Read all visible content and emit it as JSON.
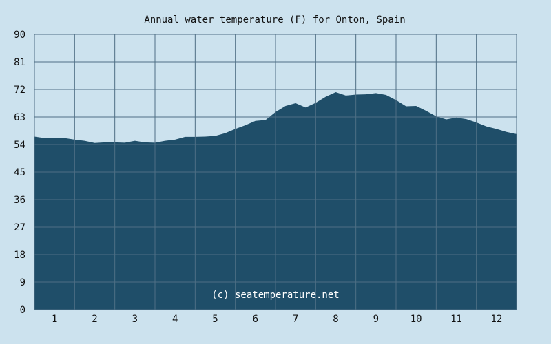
{
  "chart_data": {
    "type": "area",
    "title": "Annual water temperature (F) for Onton, Spain",
    "xlabel": "",
    "ylabel": "",
    "watermark": "(c) seatemperature.net",
    "x_tick_labels": [
      "1",
      "2",
      "3",
      "4",
      "5",
      "6",
      "7",
      "8",
      "9",
      "10",
      "11",
      "12"
    ],
    "y_tick_labels": [
      "0",
      "9",
      "18",
      "27",
      "36",
      "45",
      "54",
      "63",
      "72",
      "81",
      "90"
    ],
    "ylim": [
      0,
      90
    ],
    "xlim": [
      0,
      12
    ],
    "grid": true,
    "colors": {
      "background": "#cce2ee",
      "plot_background": "#cce2ee",
      "fill": "#1f4e69",
      "grid": "#4f6f85"
    },
    "x": [
      0.0,
      0.25,
      0.5,
      0.75,
      1.0,
      1.25,
      1.5,
      1.75,
      2.0,
      2.25,
      2.5,
      2.75,
      3.0,
      3.25,
      3.5,
      3.75,
      4.0,
      4.25,
      4.5,
      4.75,
      5.0,
      5.25,
      5.5,
      5.75,
      6.0,
      6.25,
      6.5,
      6.75,
      7.0,
      7.25,
      7.5,
      7.75,
      8.0,
      8.25,
      8.5,
      8.75,
      9.0,
      9.25,
      9.5,
      9.75,
      10.0,
      10.25,
      10.5,
      10.75,
      11.0,
      11.25,
      11.5,
      11.75,
      12.0
    ],
    "values": [
      56.6,
      56.1,
      56.1,
      56.1,
      55.6,
      55.2,
      54.5,
      54.7,
      54.7,
      54.6,
      55.2,
      54.7,
      54.6,
      55.2,
      55.6,
      56.5,
      56.5,
      56.6,
      56.8,
      57.7,
      59.1,
      60.3,
      61.7,
      62.0,
      64.6,
      66.6,
      67.5,
      66.1,
      67.6,
      69.6,
      71.1,
      70.0,
      70.3,
      70.4,
      70.8,
      70.2,
      68.5,
      66.5,
      66.6,
      65.0,
      63.2,
      62.2,
      62.8,
      62.3,
      61.2,
      59.9,
      59.1,
      58.1,
      57.4
    ]
  }
}
